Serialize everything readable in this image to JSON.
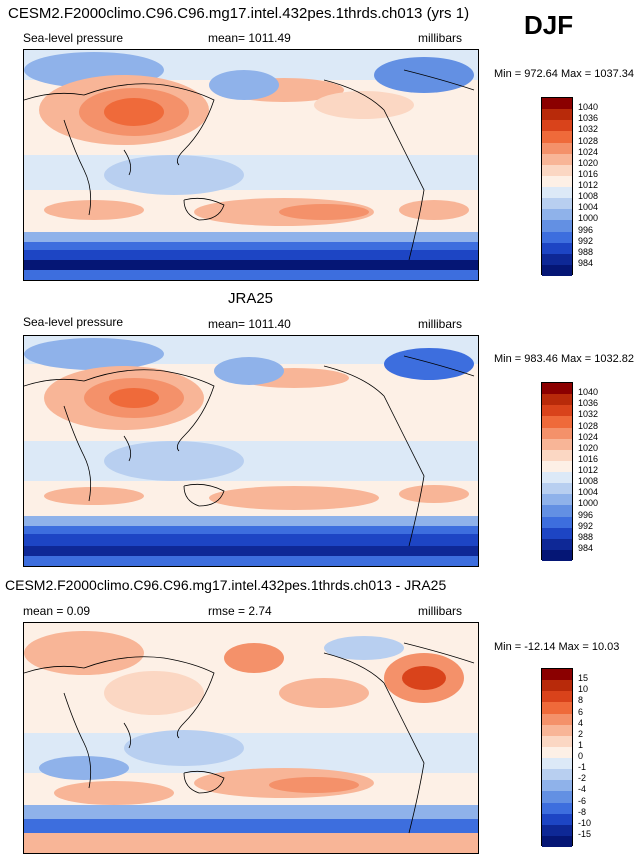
{
  "header": {
    "case_title": "CESM2.F2000climo.C96.C96.mg17.intel.432pes.1thrds.ch013 (yrs 1)",
    "season": "DJF"
  },
  "panel1": {
    "variable": "Sea-level pressure",
    "mean": "mean= 1011.49",
    "units": "millibars",
    "minmax": "Min = 972.64 Max = 1037.34"
  },
  "panel2": {
    "title": "JRA25",
    "variable": "Sea-level pressure",
    "mean": "mean= 1011.40",
    "units": "millibars",
    "minmax": "Min = 983.46 Max = 1032.82"
  },
  "panel3": {
    "title": "CESM2.F2000climo.C96.C96.mg17.intel.432pes.1thrds.ch013 - JRA25",
    "mean": "mean =   0.09",
    "rmse": "rmse =   2.74",
    "units": "millibars",
    "minmax": "Min = -12.14 Max =  10.03"
  },
  "colorbar_abs": {
    "labels": [
      "1040",
      "1036",
      "1032",
      "1028",
      "1024",
      "1020",
      "1016",
      "1012",
      "1008",
      "1004",
      "1000",
      "996",
      "992",
      "988",
      "984"
    ],
    "colors": [
      "#8b0000",
      "#b82a0a",
      "#d9431b",
      "#ef6a3a",
      "#f4916a",
      "#f8b597",
      "#fbd7c3",
      "#fdf0e6",
      "#dce9f7",
      "#b8cff0",
      "#8fb2ea",
      "#6390e3",
      "#3d6ede",
      "#1d45c4",
      "#0e2896",
      "#051675"
    ]
  },
  "colorbar_diff": {
    "labels": [
      "15",
      "10",
      "8",
      "6",
      "4",
      "2",
      "1",
      "0",
      "-1",
      "-2",
      "-4",
      "-6",
      "-8",
      "-10",
      "-15"
    ],
    "colors": [
      "#8b0000",
      "#b82a0a",
      "#d9431b",
      "#ef6a3a",
      "#f4916a",
      "#f8b597",
      "#fbd7c3",
      "#fdf0e6",
      "#dce9f7",
      "#b8cff0",
      "#8fb2ea",
      "#6390e3",
      "#3d6ede",
      "#1d45c4",
      "#0e2896",
      "#051675"
    ]
  }
}
